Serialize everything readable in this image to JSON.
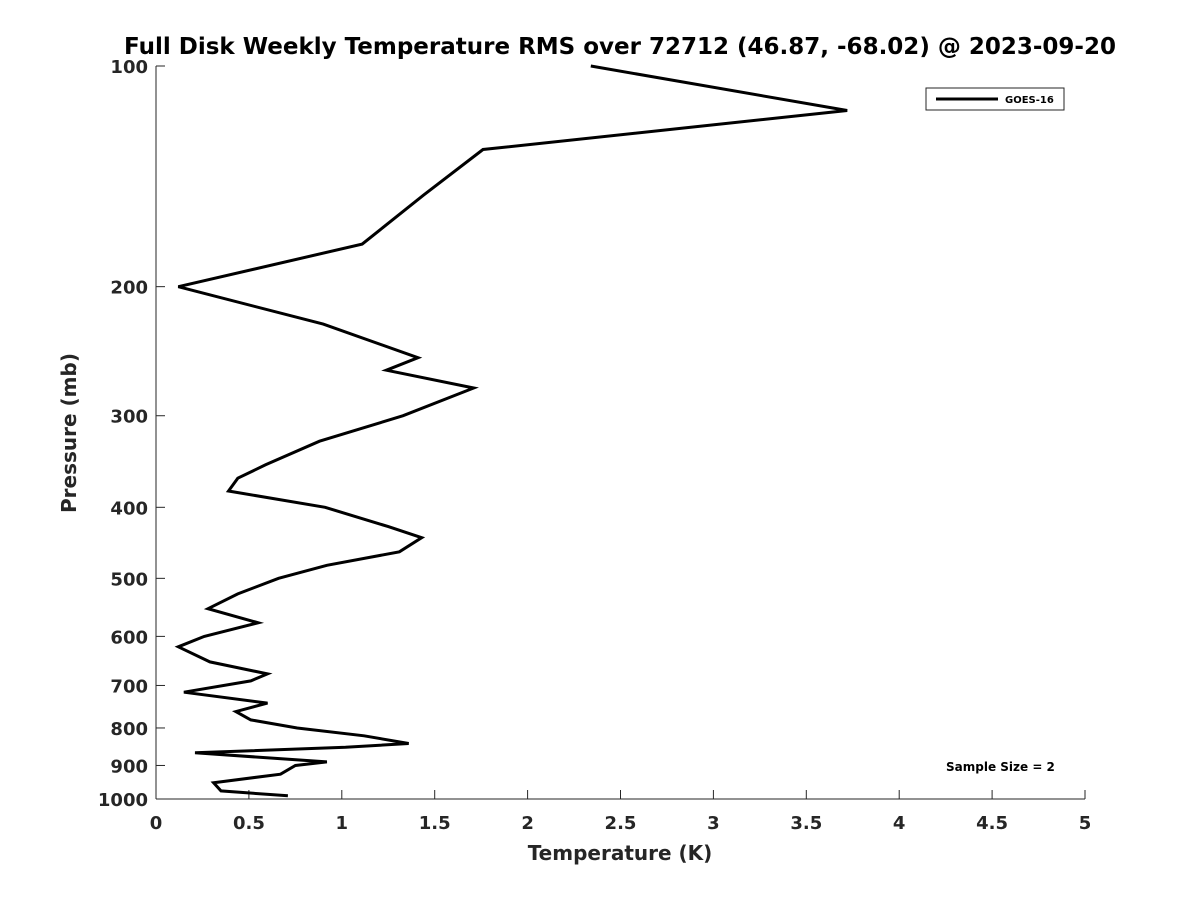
{
  "chart_data": {
    "type": "line",
    "title": "Full Disk Weekly Temperature RMS over 72712 (46.87, -68.02) @ 2023-09-20",
    "xlabel": "Temperature (K)",
    "ylabel": "Pressure (mb)",
    "xlim": [
      0,
      5
    ],
    "ylim": [
      100,
      1000
    ],
    "y_scale": "log",
    "y_reversed": true,
    "xticks": [
      0,
      0.5,
      1,
      1.5,
      2,
      2.5,
      3,
      3.5,
      4,
      4.5,
      5
    ],
    "xtick_labels": [
      "0",
      "0.5",
      "1",
      "1.5",
      "2",
      "2.5",
      "3",
      "3.5",
      "4",
      "4.5",
      "5"
    ],
    "yticks": [
      100,
      200,
      300,
      400,
      500,
      600,
      700,
      800,
      900,
      1000
    ],
    "ytick_labels": [
      "100",
      "200",
      "300",
      "400",
      "500",
      "600",
      "700",
      "800",
      "900",
      "1000"
    ],
    "grid": false,
    "legend": {
      "location": "top-right",
      "entries": [
        "GOES-16"
      ]
    },
    "annotation": "Sample Size = 2",
    "series": [
      {
        "name": "GOES-16",
        "color": "#000000",
        "x": [
          2.34,
          3.72,
          1.76,
          1.44,
          1.11,
          0.12,
          0.9,
          1.41,
          1.24,
          1.71,
          1.33,
          0.88,
          0.59,
          0.44,
          0.39,
          0.91,
          1.25,
          1.43,
          1.31,
          0.92,
          0.66,
          0.44,
          0.28,
          0.55,
          0.26,
          0.12,
          0.29,
          0.6,
          0.51,
          0.15,
          0.6,
          0.43,
          0.51,
          0.76,
          1.12,
          1.36,
          1.02,
          0.21,
          0.92,
          0.75,
          0.67,
          0.31,
          0.35,
          0.71
        ],
        "y": [
          100,
          115,
          130,
          150,
          175,
          200,
          225,
          250,
          260,
          275,
          300,
          325,
          350,
          365,
          380,
          400,
          425,
          440,
          460,
          480,
          500,
          525,
          550,
          575,
          600,
          620,
          650,
          675,
          690,
          715,
          740,
          760,
          780,
          800,
          820,
          840,
          850,
          865,
          890,
          900,
          925,
          950,
          975,
          990
        ]
      }
    ]
  }
}
